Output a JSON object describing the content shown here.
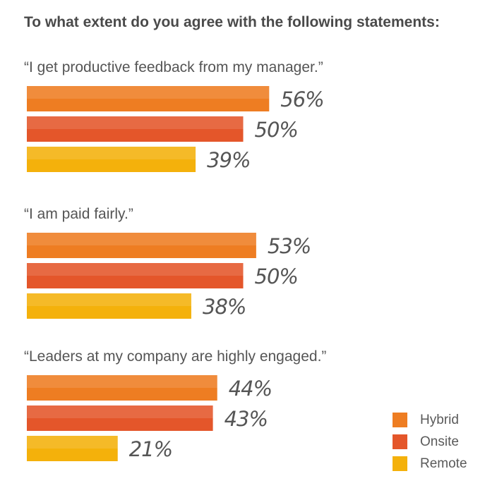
{
  "chart_data": {
    "type": "bar",
    "orientation": "horizontal",
    "title": "To what extent do you agree with the following statements:",
    "categories": [
      "“I get productive feedback from my manager.”",
      "“I am paid fairly.”",
      "“Leaders at my company are highly engaged.”"
    ],
    "series": [
      {
        "name": "Hybrid",
        "color": "#ee7d22",
        "values": [
          56,
          53,
          44
        ]
      },
      {
        "name": "Onsite",
        "color": "#e4562a",
        "values": [
          50,
          50,
          43
        ]
      },
      {
        "name": "Remote",
        "color": "#f4b10b",
        "values": [
          39,
          38,
          21
        ]
      }
    ],
    "value_labels": [
      [
        "56%",
        "50%",
        "39%"
      ],
      [
        "53%",
        "50%",
        "38%"
      ],
      [
        "44%",
        "43%",
        "21%"
      ]
    ],
    "xlim": [
      0,
      100
    ],
    "xlabel": "",
    "ylabel": "",
    "grid": false,
    "legend": {
      "position": "bottom-right"
    }
  }
}
